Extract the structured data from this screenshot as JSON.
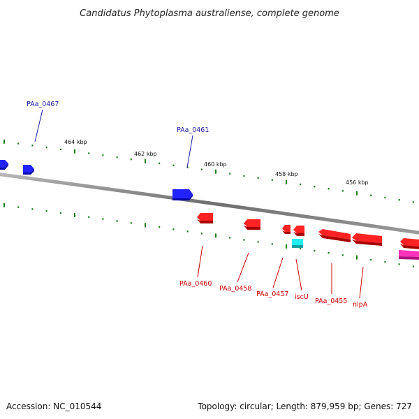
{
  "title": "Candidatus Phytoplasma australiense, complete genome",
  "footer": {
    "accession": "Accession: NC_010544",
    "summary": "Topology: circular; Length: 879,959 bp; Genes: 727"
  },
  "colors": {
    "forward_gene": "#1010ee",
    "forward_label": "#1a1aa0",
    "reverse_gene": "#ee1111",
    "reverse_label": "#cc0000",
    "tick": "#1c7a1c",
    "backbone": "#7a7a7a",
    "cyan_gene": "#22dddd",
    "magenta_gene": "#ee22aa"
  },
  "scale_labels": [
    {
      "text": "464 kbp"
    },
    {
      "text": "462 kbp"
    },
    {
      "text": "460 kbp"
    },
    {
      "text": "458 kbp"
    },
    {
      "text": "456 kbp"
    }
  ],
  "forward_labels": [
    {
      "text": "PAa_0467"
    },
    {
      "text": "PAa_0461"
    }
  ],
  "reverse_labels": [
    {
      "text": "PAa_0460"
    },
    {
      "text": "PAa_0458"
    },
    {
      "text": "PAa_0457"
    },
    {
      "text": "iscU"
    },
    {
      "text": "PAa_0455"
    },
    {
      "text": "nlpA"
    }
  ]
}
